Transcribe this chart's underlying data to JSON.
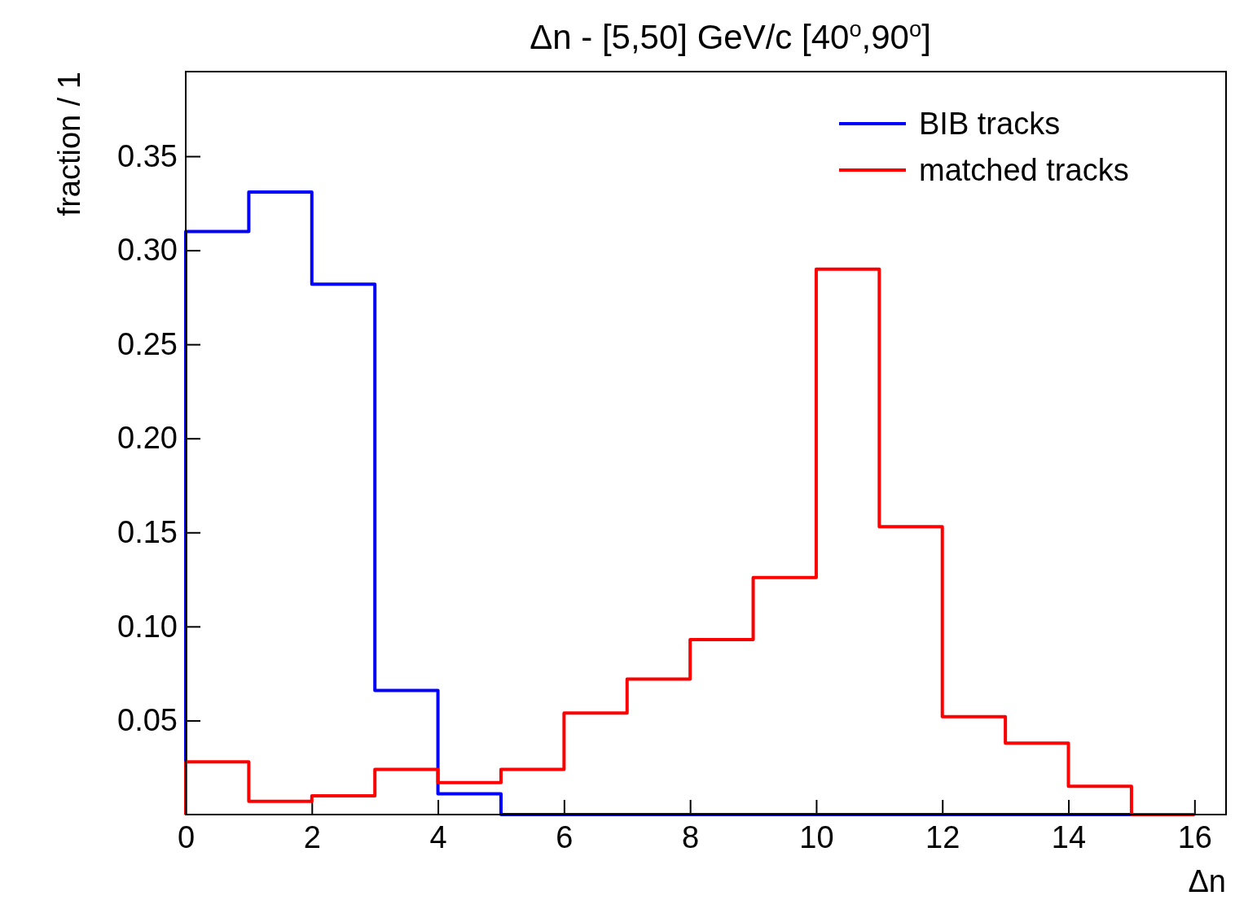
{
  "chart_data": {
    "type": "histogram",
    "title": "Δn - [5,50] GeV/c [40$^{o}$,90$^{o}$]",
    "xlabel": "Δn",
    "ylabel": "fraction / 1",
    "bins": [
      0,
      1,
      2,
      3,
      4,
      5,
      6,
      7,
      8,
      9,
      10,
      11,
      12,
      13,
      14,
      15,
      16
    ],
    "series": [
      {
        "name": "BIB tracks",
        "color": "#0000ff",
        "values": [
          0.31,
          0.331,
          0.282,
          0.066,
          0.011,
          0,
          0,
          0,
          0,
          0,
          0,
          0,
          0,
          0,
          0,
          0
        ]
      },
      {
        "name": "matched tracks",
        "color": "#ff0000",
        "values": [
          0.028,
          0.007,
          0.01,
          0.024,
          0.017,
          0.024,
          0.054,
          0.072,
          0.093,
          0.126,
          0.29,
          0.153,
          0.052,
          0.038,
          0.015,
          0
        ]
      }
    ],
    "xlim": [
      0,
      16.5
    ],
    "xticks": [
      0,
      2,
      4,
      6,
      8,
      10,
      12,
      14,
      16
    ],
    "ylim": [
      0,
      0.395
    ],
    "yticks": [
      {
        "value": 0.05,
        "label": "0.05"
      },
      {
        "value": 0.1,
        "label": "0.10"
      },
      {
        "value": 0.15,
        "label": "0.15"
      },
      {
        "value": 0.2,
        "label": "0.20"
      },
      {
        "value": 0.25,
        "label": "0.25"
      },
      {
        "value": 0.3,
        "label": "0.30"
      },
      {
        "value": 0.35,
        "label": "0.35"
      }
    ],
    "legend": "top right",
    "grid": false
  }
}
